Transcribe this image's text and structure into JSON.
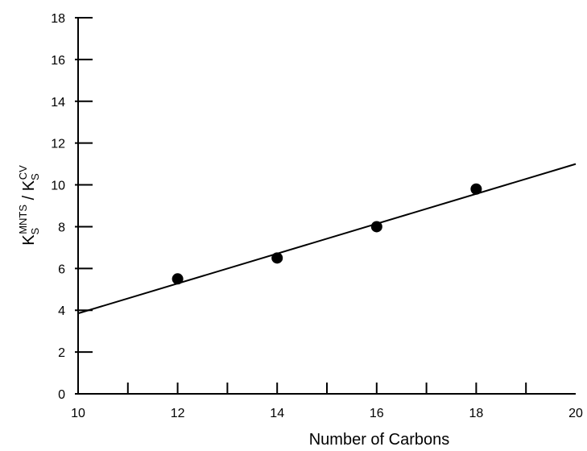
{
  "chart_data": {
    "type": "scatter",
    "xlabel": "Number of Carbons",
    "ylabel": {
      "parts": [
        {
          "text": "K",
          "style": "normal"
        },
        {
          "text": "S",
          "style": "sub"
        },
        {
          "text": "MNTS",
          "style": "sup"
        },
        {
          "text": " / K",
          "style": "normal"
        },
        {
          "text": "S",
          "style": "sub"
        },
        {
          "text": "CV",
          "style": "sup"
        }
      ]
    },
    "xlim": [
      10,
      20
    ],
    "ylim": [
      0,
      18
    ],
    "x_ticks": [
      10,
      12,
      14,
      16,
      18,
      20
    ],
    "x_minor_ticks": [
      11,
      12,
      13,
      14,
      15,
      16,
      17,
      18,
      19
    ],
    "y_ticks": [
      0,
      2,
      4,
      6,
      8,
      10,
      12,
      14,
      16,
      18
    ],
    "grid": false,
    "series": [
      {
        "x": [
          12,
          14,
          16,
          18
        ],
        "y": [
          5.5,
          6.5,
          8.0,
          9.8
        ],
        "marker": "filled-circle",
        "color": "#000000"
      }
    ],
    "fit_line": {
      "x": [
        10,
        20
      ],
      "y": [
        3.85,
        11.0
      ],
      "color": "#000000"
    }
  }
}
